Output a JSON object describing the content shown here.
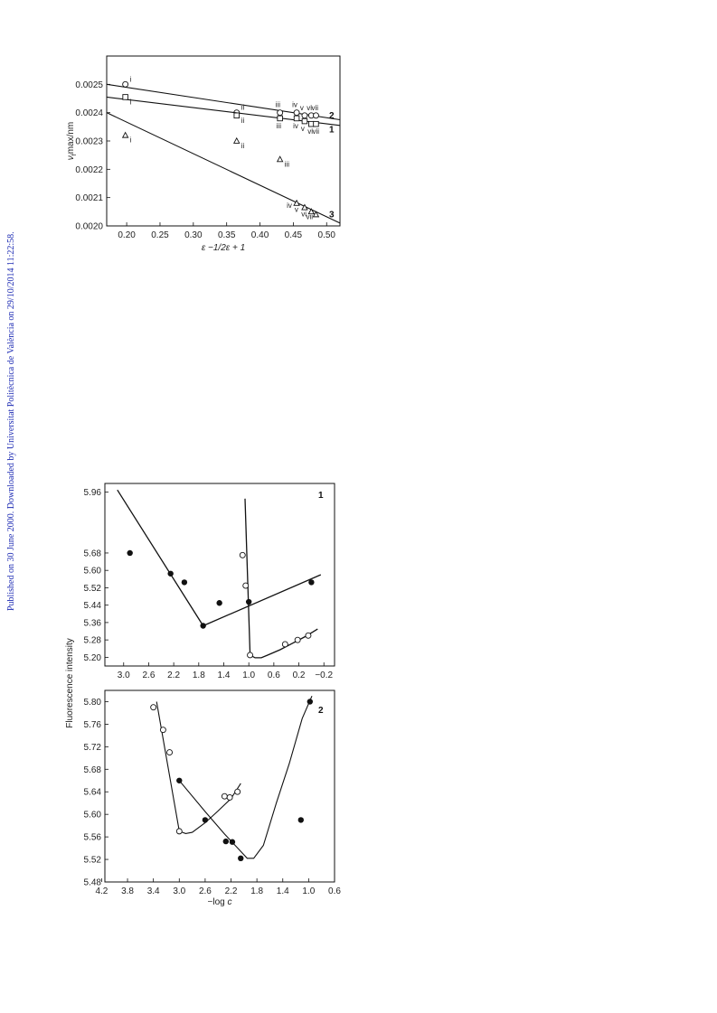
{
  "side_note": {
    "text": "Published on 30 June 2000. Downloaded by Universitat Politècnica de València on 29/10/2014 11:22:58.",
    "color": "#1f2db4"
  },
  "chart_data": [
    {
      "type": "scatter",
      "xlabel": "ε −1/2ε + 1",
      "ylabel": "ν",
      "ylabel_sub": "f",
      "ylabel_rest": "max/nm",
      "xlim": [
        0.17,
        0.52
      ],
      "ylim": [
        0.002,
        0.0026
      ],
      "xticks": [
        "0.20",
        "0.25",
        "0.30",
        "0.35",
        "0.40",
        "0.45",
        "0.50"
      ],
      "xtick_values": [
        0.2,
        0.25,
        0.3,
        0.35,
        0.4,
        0.45,
        0.5
      ],
      "yticks": [
        "0.0020",
        "0.0021",
        "0.0022",
        "0.0023",
        "0.0024",
        "0.0025"
      ],
      "ytick_values": [
        0.002,
        0.0021,
        0.0022,
        0.0023,
        0.0024,
        0.0025
      ],
      "series": [
        {
          "id": "circles",
          "marker": "circle",
          "line_label": "2",
          "line": [
            [
              0.17,
              0.0025
            ],
            [
              0.52,
              0.002375
            ]
          ],
          "points": [
            {
              "x": 0.198,
              "y": 0.0025,
              "label": "i"
            },
            {
              "x": 0.365,
              "y": 0.0024,
              "label": "ii"
            },
            {
              "x": 0.43,
              "y": 0.0024,
              "label": "iii"
            },
            {
              "x": 0.455,
              "y": 0.0024,
              "label": "iv"
            },
            {
              "x": 0.467,
              "y": 0.00239,
              "label": "v"
            },
            {
              "x": 0.477,
              "y": 0.00239,
              "label": "vi"
            },
            {
              "x": 0.484,
              "y": 0.00239,
              "label": "vii"
            }
          ]
        },
        {
          "id": "squares",
          "marker": "square",
          "line_label": "1",
          "line": [
            [
              0.17,
              0.002455
            ],
            [
              0.52,
              0.002355
            ]
          ],
          "points": [
            {
              "x": 0.198,
              "y": 0.002455,
              "label": "i"
            },
            {
              "x": 0.365,
              "y": 0.00239,
              "label": "ii"
            },
            {
              "x": 0.43,
              "y": 0.00238,
              "label": "iii"
            },
            {
              "x": 0.455,
              "y": 0.00238,
              "label": "iv"
            },
            {
              "x": 0.467,
              "y": 0.00237,
              "label": "v"
            },
            {
              "x": 0.477,
              "y": 0.00236,
              "label": "vi"
            },
            {
              "x": 0.484,
              "y": 0.00236,
              "label": "vii"
            }
          ]
        },
        {
          "id": "triangles",
          "marker": "triangle",
          "line_label": "3",
          "line": [
            [
              0.17,
              0.0024
            ],
            [
              0.52,
              0.00201
            ]
          ],
          "points": [
            {
              "x": 0.198,
              "y": 0.00232,
              "label": "i"
            },
            {
              "x": 0.365,
              "y": 0.0023,
              "label": "ii"
            },
            {
              "x": 0.43,
              "y": 0.002235,
              "label": "iii"
            },
            {
              "x": 0.455,
              "y": 0.00208,
              "label": "iv"
            },
            {
              "x": 0.467,
              "y": 0.002065,
              "label": "v"
            },
            {
              "x": 0.477,
              "y": 0.00205,
              "label": "vi"
            },
            {
              "x": 0.484,
              "y": 0.00204,
              "label": "vii"
            }
          ]
        }
      ]
    },
    {
      "type": "scatter",
      "panel_label": "1",
      "xlim": [
        3.3,
        -0.37
      ],
      "ylim": [
        5.16,
        6.0
      ],
      "xticks": [
        "3.0",
        "2.6",
        "2.2",
        "1.8",
        "1.4",
        "1.0",
        "0.6",
        "0.2",
        "−0.2"
      ],
      "xtick_values": [
        3.0,
        2.6,
        2.2,
        1.8,
        1.4,
        1.0,
        0.6,
        0.2,
        -0.2
      ],
      "yticks": [
        "5.20",
        "5.28",
        "5.36",
        "5.44",
        "5.52",
        "5.60",
        "5.68",
        "5.96"
      ],
      "ytick_values": [
        5.2,
        5.28,
        5.36,
        5.44,
        5.52,
        5.6,
        5.68,
        5.96
      ],
      "series": [
        {
          "id": "filled",
          "marker": "filled",
          "points": [
            [
              2.9,
              5.68
            ],
            [
              2.25,
              5.585
            ],
            [
              2.03,
              5.545
            ],
            [
              1.47,
              5.45
            ],
            [
              1.73,
              5.345
            ],
            [
              1.0,
              5.455
            ],
            [
              0.0,
              5.545
            ]
          ],
          "curve": [
            [
              3.1,
              5.97
            ],
            [
              1.73,
              5.345
            ],
            [
              -0.15,
              5.58
            ]
          ]
        },
        {
          "id": "open",
          "marker": "open",
          "points": [
            [
              1.1,
              5.67
            ],
            [
              1.05,
              5.53
            ],
            [
              0.98,
              5.21
            ],
            [
              0.42,
              5.26
            ],
            [
              0.22,
              5.28
            ],
            [
              0.05,
              5.3
            ]
          ],
          "curve": [
            [
              1.06,
              5.93
            ],
            [
              0.98,
              5.21
            ],
            [
              0.9,
              5.198
            ],
            [
              0.8,
              5.198
            ],
            [
              0.7,
              5.21
            ],
            [
              0.5,
              5.235
            ],
            [
              0.3,
              5.265
            ],
            [
              0.1,
              5.295
            ],
            [
              -0.1,
              5.33
            ]
          ]
        }
      ]
    },
    {
      "type": "scatter",
      "panel_label": "2",
      "xlabel_prefix": "−log ",
      "xlabel_var": "c",
      "ylabel": "Fluorescence intensity",
      "xlim": [
        4.15,
        0.6
      ],
      "ylim": [
        5.48,
        5.82
      ],
      "xticks": [
        "4.2",
        "3.8",
        "3.4",
        "3.0",
        "2.6",
        "2.2",
        "1.8",
        "1.4",
        "1.0",
        "0.6"
      ],
      "xtick_values": [
        4.2,
        3.8,
        3.4,
        3.0,
        2.6,
        2.2,
        1.8,
        1.4,
        1.0,
        0.6
      ],
      "yticks": [
        "5.48",
        "5.52",
        "5.56",
        "5.60",
        "5.64",
        "5.68",
        "5.72",
        "5.76",
        "5.80"
      ],
      "ytick_values": [
        5.48,
        5.52,
        5.56,
        5.6,
        5.64,
        5.68,
        5.72,
        5.76,
        5.8
      ],
      "series": [
        {
          "id": "open",
          "marker": "open",
          "points": [
            [
              3.4,
              5.79
            ],
            [
              3.25,
              5.75
            ],
            [
              3.15,
              5.71
            ],
            [
              3.0,
              5.57
            ],
            [
              2.3,
              5.632
            ],
            [
              2.22,
              5.63
            ],
            [
              2.1,
              5.64
            ]
          ],
          "curve": [
            [
              3.35,
              5.8
            ],
            [
              3.0,
              5.57
            ],
            [
              2.9,
              5.566
            ],
            [
              2.8,
              5.568
            ],
            [
              2.6,
              5.585
            ],
            [
              2.4,
              5.606
            ],
            [
              2.2,
              5.628
            ],
            [
              2.05,
              5.655
            ]
          ]
        },
        {
          "id": "filled",
          "marker": "filled",
          "points": [
            [
              3.0,
              5.66
            ],
            [
              2.6,
              5.59
            ],
            [
              2.28,
              5.552
            ],
            [
              2.18,
              5.551
            ],
            [
              2.05,
              5.522
            ],
            [
              1.12,
              5.59
            ],
            [
              0.98,
              5.8
            ]
          ],
          "curve": [
            [
              3.0,
              5.66
            ],
            [
              2.6,
              5.605
            ],
            [
              2.3,
              5.565
            ],
            [
              1.95,
              5.522
            ],
            [
              1.85,
              5.522
            ],
            [
              1.7,
              5.545
            ],
            [
              1.5,
              5.62
            ],
            [
              1.3,
              5.69
            ],
            [
              1.1,
              5.77
            ],
            [
              0.95,
              5.81
            ]
          ]
        }
      ]
    }
  ]
}
